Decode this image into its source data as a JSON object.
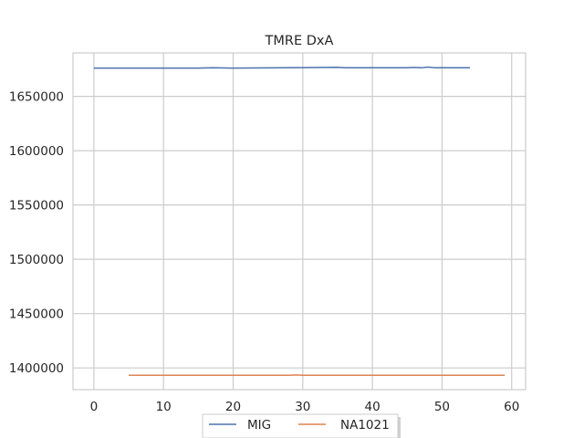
{
  "chart_data": {
    "type": "line",
    "title": "TMRE DxA",
    "xlabel": "",
    "ylabel": "",
    "xlim": [
      -3,
      62
    ],
    "ylim": [
      1380000,
      1690000
    ],
    "xticks": [
      0,
      10,
      20,
      30,
      40,
      50,
      60
    ],
    "xtick_labels": [
      "0",
      "10",
      "20",
      "30",
      "40",
      "50",
      "60"
    ],
    "yticks": [
      1400000,
      1450000,
      1500000,
      1550000,
      1600000,
      1650000
    ],
    "ytick_labels": [
      "1400000",
      "1450000",
      "1500000",
      "1550000",
      "1600000",
      "1650000"
    ],
    "grid": true,
    "legend_placement": "bottom-center",
    "series": [
      {
        "name": "MIG",
        "color": "#4c72b0",
        "x": [
          0,
          5,
          10,
          15,
          17,
          20,
          25,
          29,
          30,
          33,
          35,
          36,
          40,
          45,
          46,
          47,
          48,
          49,
          50,
          54
        ],
        "y": [
          1676000,
          1676000,
          1676000,
          1676000,
          1676300,
          1676000,
          1676200,
          1676500,
          1676500,
          1676700,
          1676800,
          1676300,
          1676300,
          1676300,
          1676700,
          1676300,
          1677000,
          1676300,
          1676300,
          1676300
        ]
      },
      {
        "name": "NA1021",
        "color": "#dd8452",
        "x": [
          5,
          10,
          20,
          28,
          29,
          30,
          40,
          50,
          59
        ],
        "y": [
          1393200,
          1393200,
          1393200,
          1393200,
          1393500,
          1393200,
          1393200,
          1393200,
          1393200
        ]
      }
    ]
  }
}
